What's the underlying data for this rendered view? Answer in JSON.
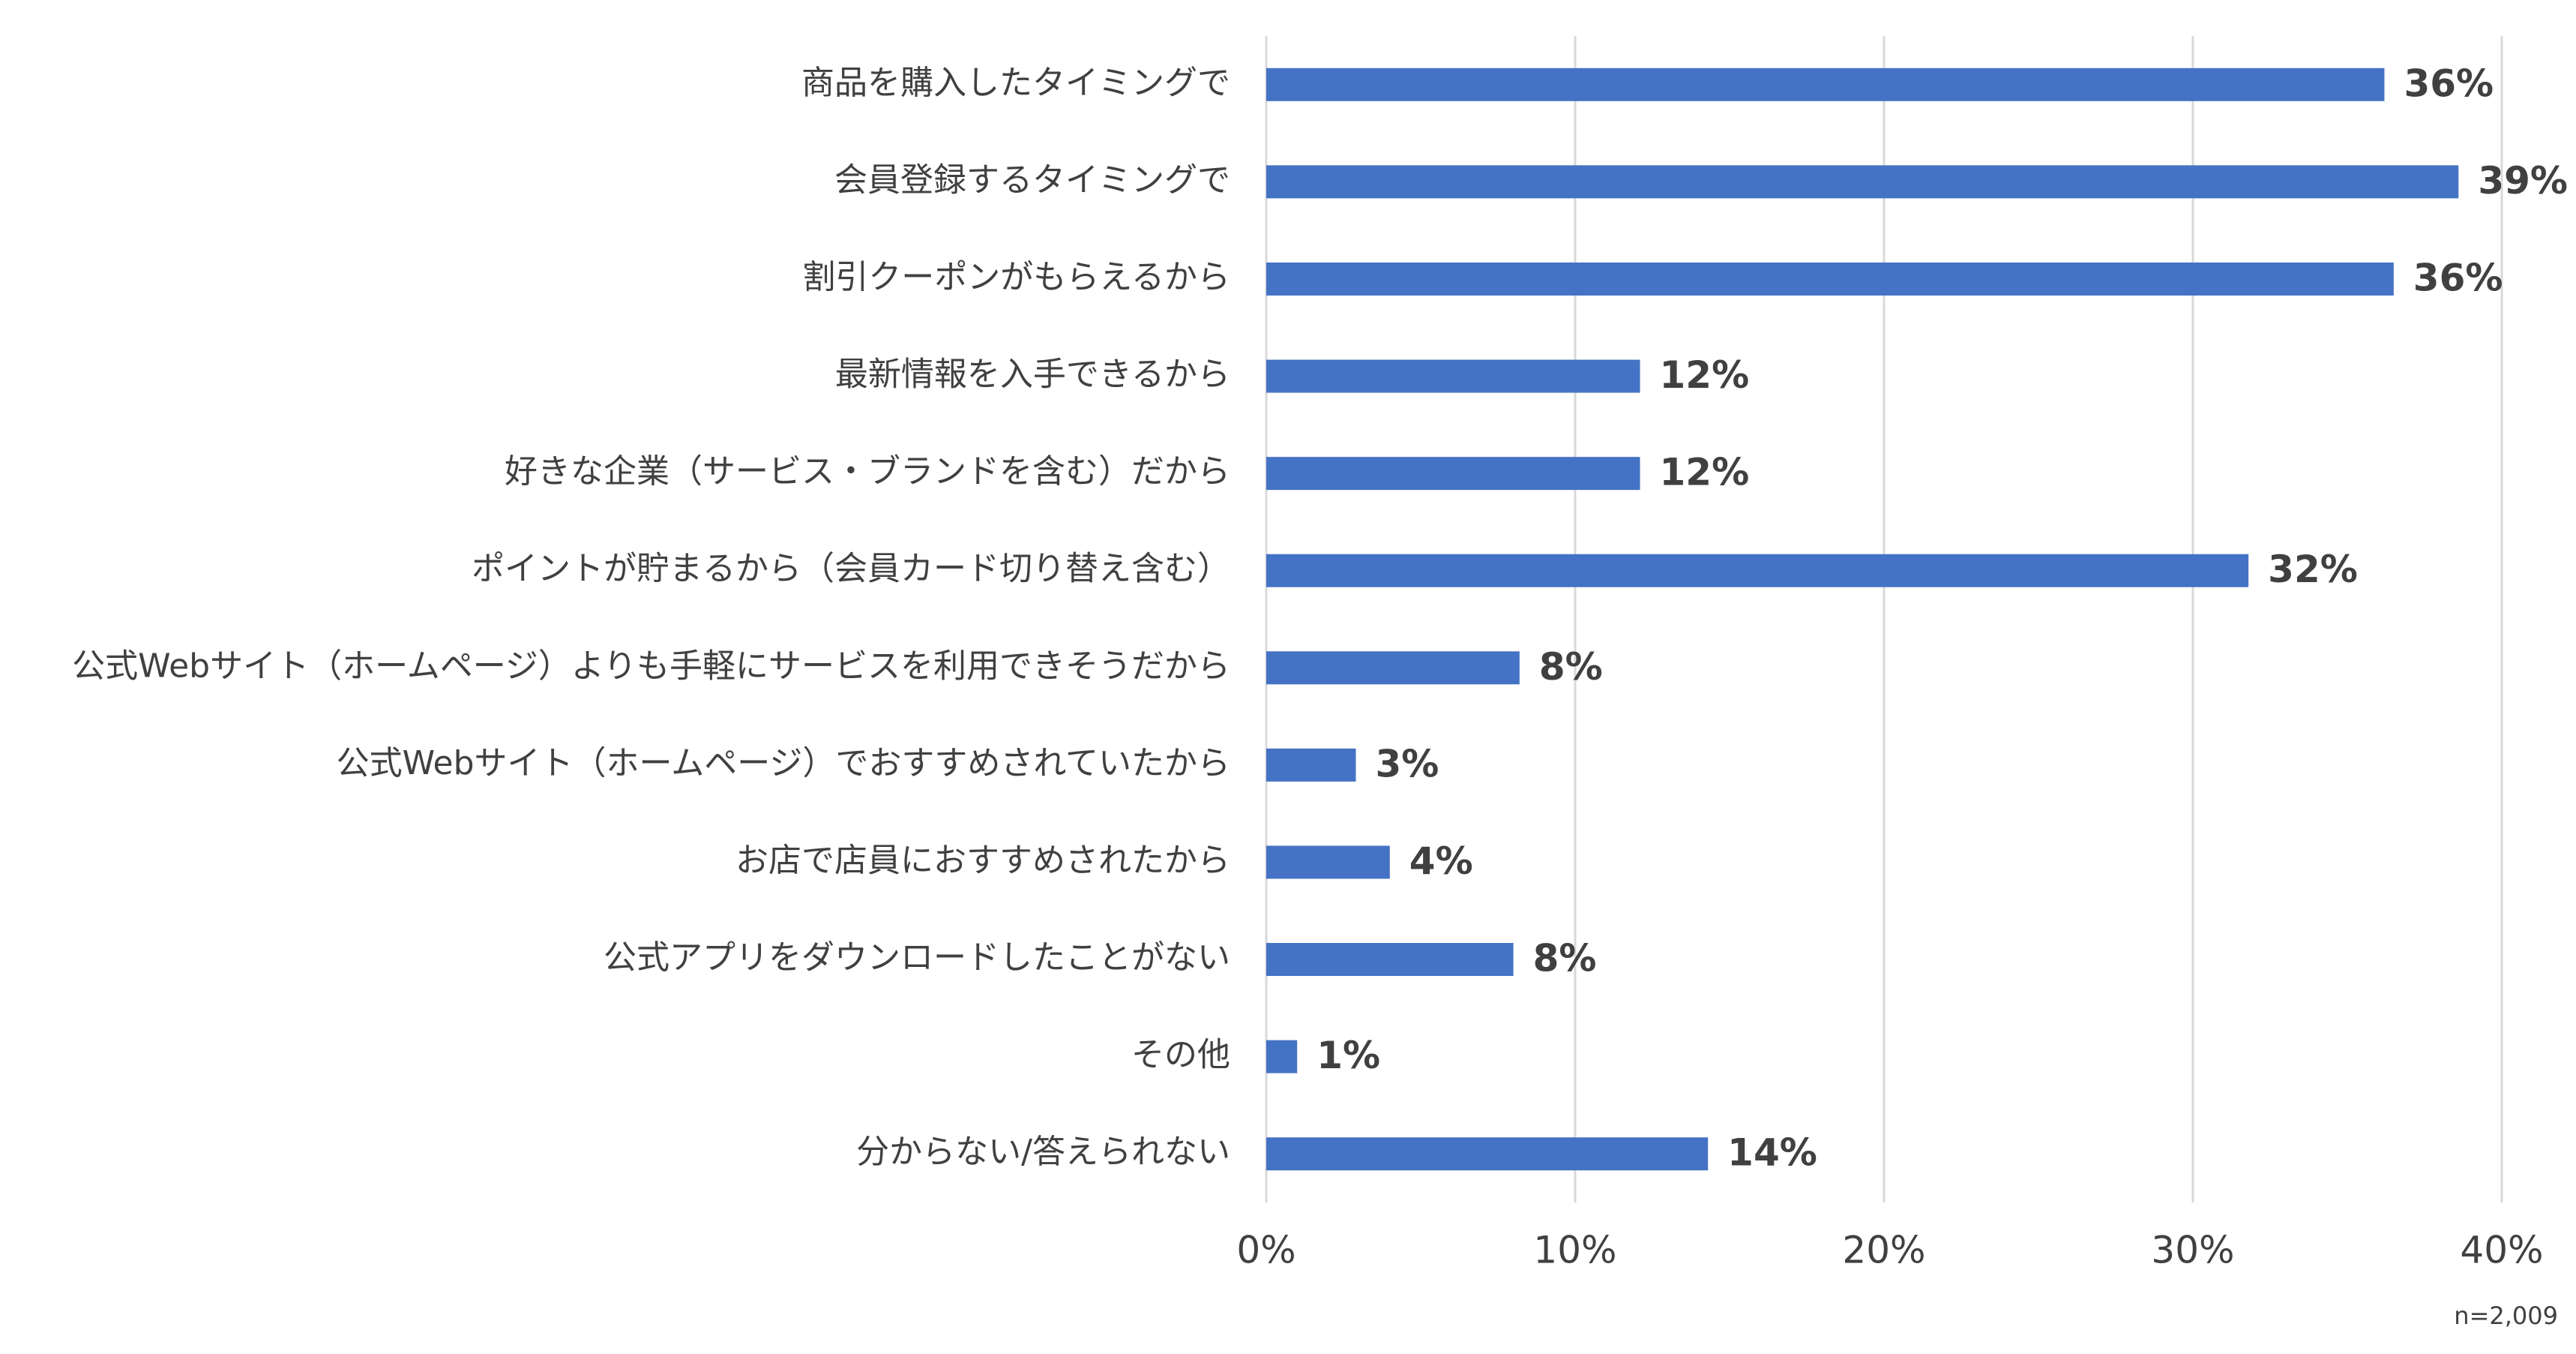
{
  "chart_data": {
    "type": "bar",
    "orientation": "horizontal",
    "categories": [
      "商品を購入したタイミングで",
      "会員登録するタイミングで",
      "割引クーポンがもらえるから",
      "最新情報を入手できるから",
      "好きな企業（サービス・ブランドを含む）だから",
      "ポイントが貯まるから（会員カード切り替え含む）",
      "公式Webサイト（ホームページ）よりも手軽にサービスを利用できそうだから",
      "公式Webサイト（ホームページ）でおすすめされていたから",
      "お店で店員におすすめされたから",
      "公式アプリをダウンロードしたことがない",
      "その他",
      "分からない/答えられない"
    ],
    "values": [
      36.2,
      38.6,
      36.5,
      12.1,
      12.1,
      31.8,
      8.2,
      2.9,
      4.0,
      8.0,
      1.0,
      14.3
    ],
    "value_labels": [
      "36%",
      "39%",
      "36%",
      "12%",
      "12%",
      "32%",
      "8%",
      "3%",
      "4%",
      "8%",
      "1%",
      "14%"
    ],
    "color": "#4472c4",
    "xlim": [
      0,
      40
    ],
    "xticks": [
      {
        "value": 0,
        "label": "0%"
      },
      {
        "value": 10,
        "label": "10%"
      },
      {
        "value": 20,
        "label": "20%"
      },
      {
        "value": 30,
        "label": "30%"
      },
      {
        "value": 40,
        "label": "40%"
      }
    ],
    "grid": true,
    "annotation": "n=2,009"
  }
}
